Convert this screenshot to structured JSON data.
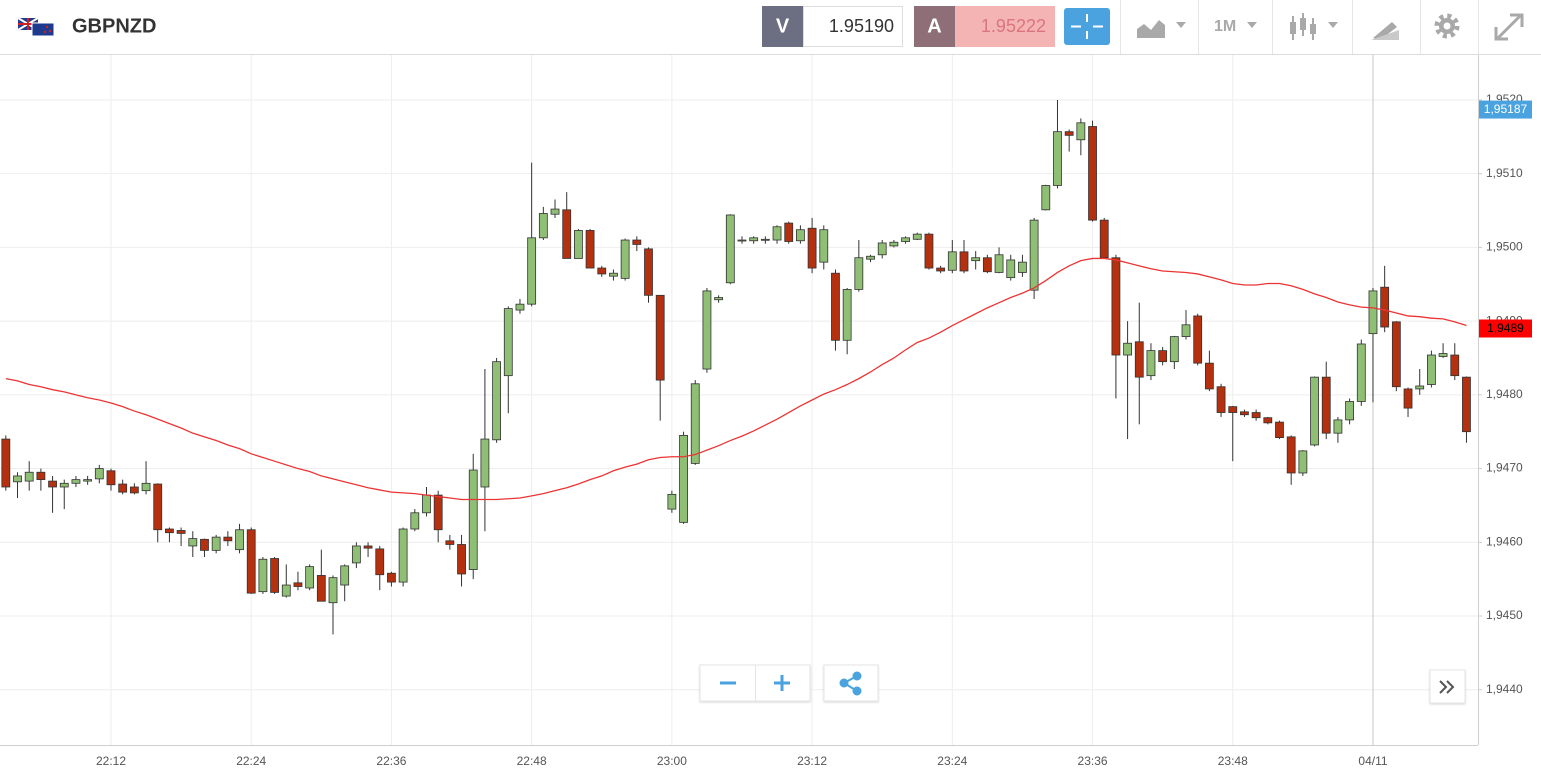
{
  "header": {
    "symbol": "GBPNZD",
    "sell_label": "V",
    "sell_price": "1.95190",
    "buy_label": "A",
    "buy_price": "1.95222",
    "timeframe": "1M"
  },
  "chart_data": {
    "type": "candlestick",
    "categories": [
      null,
      null,
      null,
      null,
      null,
      null,
      null,
      null,
      null,
      "22:12",
      null,
      null,
      null,
      null,
      null,
      null,
      null,
      null,
      null,
      null,
      null,
      "22:24",
      null,
      null,
      null,
      null,
      null,
      null,
      null,
      null,
      null,
      null,
      null,
      "22:36",
      null,
      null,
      null,
      null,
      null,
      null,
      null,
      null,
      null,
      null,
      null,
      "22:48",
      null,
      null,
      null,
      null,
      null,
      null,
      null,
      null,
      null,
      null,
      null,
      "23:00",
      null,
      null,
      null,
      null,
      null,
      null,
      null,
      null,
      null,
      null,
      null,
      "23:12",
      null,
      null,
      null,
      null,
      null,
      null,
      null,
      null,
      null,
      null,
      null,
      "23:24",
      null,
      null,
      null,
      null,
      null,
      null,
      null,
      null,
      null,
      null,
      null,
      "23:36",
      null,
      null,
      null,
      null,
      null,
      null,
      null,
      null,
      null,
      null,
      null,
      "23:48",
      null,
      null,
      null,
      null,
      null,
      null,
      null,
      null,
      null,
      null,
      null,
      "04/11",
      null,
      null,
      null,
      null,
      null,
      null,
      null,
      null
    ],
    "open": [
      1.9474,
      1.94682,
      1.94683,
      1.94695,
      1.94683,
      1.94675,
      1.9468,
      1.94683,
      1.94686,
      1.94697,
      1.94679,
      1.94675,
      1.9467,
      1.94679,
      1.94618,
      1.94616,
      1.94595,
      1.94604,
      1.94589,
      1.94607,
      1.9459,
      1.94617,
      1.94533,
      1.94578,
      1.94527,
      1.94545,
      1.94538,
      1.94555,
      1.94518,
      1.94542,
      1.94572,
      1.94595,
      1.94591,
      1.94558,
      1.94546,
      1.94618,
      1.9464,
      1.94664,
      1.94602,
      1.94597,
      1.94563,
      1.94675,
      1.94739,
      1.94826,
      1.94915,
      1.94923,
      1.95013,
      1.95045,
      1.95051,
      1.94985,
      1.95023,
      1.94972,
      1.94961,
      1.94958,
      1.9501,
      1.94998,
      1.94935,
      1.94645,
      1.94627,
      1.94707,
      1.94835,
      1.94929,
      1.94952,
      1.9501,
      1.95009,
      1.9501,
      1.9501,
      1.95033,
      1.95009,
      1.95026,
      1.9498,
      1.94965,
      1.94874,
      1.94943,
      1.94984,
      1.9499,
      1.95002,
      1.95008,
      1.95011,
      1.95018,
      1.94972,
      1.94969,
      1.94994,
      1.94982,
      1.94986,
      1.94966,
      1.94959,
      1.94966,
      1.94942,
      1.95051,
      1.95084,
      1.95157,
      1.95146,
      1.95164,
      1.95037,
      1.94986,
      1.94854,
      1.94872,
      1.94826,
      1.9486,
      1.94845,
      1.94879,
      1.94907,
      1.94843,
      1.94811,
      1.94784,
      1.94777,
      1.94776,
      1.94769,
      1.94763,
      1.94743,
      1.94694,
      1.94732,
      1.94824,
      1.94748,
      1.94766,
      1.94791,
      1.94883,
      1.94946,
      1.94899,
      1.94808,
      1.94808,
      1.94814,
      1.94852,
      1.94854,
      1.94824
    ],
    "high": [
      1.94745,
      1.94695,
      1.9471,
      1.947,
      1.9469,
      1.94685,
      1.9469,
      1.9469,
      1.94705,
      1.947,
      1.94685,
      1.9468,
      1.9471,
      1.9468,
      1.9462,
      1.9462,
      1.94615,
      1.94605,
      1.9461,
      1.94615,
      1.94625,
      1.9462,
      1.9458,
      1.9458,
      1.9457,
      1.9456,
      1.9457,
      1.9459,
      1.94555,
      1.9457,
      1.946,
      1.946,
      1.94595,
      1.9456,
      1.9462,
      1.94645,
      1.94675,
      1.9467,
      1.9461,
      1.9461,
      1.9472,
      1.94835,
      1.9485,
      1.9492,
      1.9493,
      1.95115,
      1.95055,
      1.95065,
      1.95075,
      1.95025,
      1.95025,
      1.94975,
      1.9497,
      1.95012,
      1.95015,
      1.95,
      1.94935,
      1.9467,
      1.9475,
      1.9482,
      1.94945,
      1.94935,
      1.95045,
      1.95015,
      1.95015,
      1.95015,
      1.9503,
      1.95035,
      1.9503,
      1.9504,
      1.9503,
      1.9497,
      1.94945,
      1.9501,
      1.9499,
      1.9501,
      1.9501,
      1.95015,
      1.9502,
      1.9502,
      1.94975,
      1.9501,
      1.9501,
      1.94995,
      1.9499,
      1.95,
      1.9499,
      1.9499,
      1.9504,
      1.95085,
      1.952,
      1.9516,
      1.95175,
      1.95172,
      1.9504,
      1.9499,
      1.949,
      1.94925,
      1.9487,
      1.94865,
      1.9488,
      1.94915,
      1.9491,
      1.9486,
      1.94815,
      1.94785,
      1.9478,
      1.9478,
      1.9477,
      1.94765,
      1.94745,
      1.94725,
      1.94825,
      1.94845,
      1.9477,
      1.94795,
      1.94875,
      1.94945,
      1.94975,
      1.949,
      1.9481,
      1.94835,
      1.9486,
      1.9487,
      1.9487,
      1.94825
    ],
    "low": [
      1.9467,
      1.9466,
      1.9467,
      1.9467,
      1.9464,
      1.94645,
      1.94675,
      1.94678,
      1.9468,
      1.9467,
      1.94665,
      1.94665,
      1.94665,
      1.946,
      1.946,
      1.94595,
      1.9458,
      1.9458,
      1.94585,
      1.94595,
      1.94585,
      1.9453,
      1.9453,
      1.9453,
      1.94525,
      1.94535,
      1.94535,
      1.9452,
      1.94475,
      1.9452,
      1.94565,
      1.9458,
      1.94535,
      1.9454,
      1.9454,
      1.94615,
      1.94635,
      1.946,
      1.9459,
      1.9454,
      1.9455,
      1.94615,
      1.94735,
      1.94775,
      1.9491,
      1.9492,
      1.9501,
      1.9504,
      1.94985,
      1.94985,
      1.94972,
      1.9496,
      1.94955,
      1.94955,
      1.94995,
      1.94925,
      1.94765,
      1.9464,
      1.94625,
      1.94705,
      1.9483,
      1.94925,
      1.9495,
      1.95005,
      1.95005,
      1.95005,
      1.95005,
      1.95005,
      1.95005,
      1.94965,
      1.9497,
      1.9486,
      1.94855,
      1.9494,
      1.9498,
      1.94985,
      1.95,
      1.95005,
      1.9501,
      1.9497,
      1.94965,
      1.94965,
      1.94965,
      1.9497,
      1.94965,
      1.94965,
      1.94955,
      1.9496,
      1.9493,
      1.9505,
      1.9508,
      1.9513,
      1.95125,
      1.95035,
      1.94985,
      1.94795,
      1.9474,
      1.9476,
      1.9482,
      1.9484,
      1.94835,
      1.94875,
      1.9484,
      1.94805,
      1.9477,
      1.9471,
      1.9477,
      1.94765,
      1.9476,
      1.9474,
      1.94678,
      1.9469,
      1.9473,
      1.9474,
      1.94735,
      1.9476,
      1.94785,
      1.9479,
      1.94885,
      1.94805,
      1.9477,
      1.948,
      1.9481,
      1.9485,
      1.9482,
      1.94735
    ],
    "close": [
      1.94675,
      1.9469,
      1.94695,
      1.94685,
      1.94675,
      1.9468,
      1.94685,
      1.94685,
      1.947,
      1.94678,
      1.94668,
      1.94667,
      1.9468,
      1.94617,
      1.94613,
      1.94612,
      1.94605,
      1.94589,
      1.94607,
      1.94602,
      1.94617,
      1.94531,
      1.94577,
      1.94532,
      1.94542,
      1.9454,
      1.94567,
      1.9452,
      1.94552,
      1.94568,
      1.94595,
      1.94592,
      1.94556,
      1.94546,
      1.94618,
      1.9464,
      1.94664,
      1.94617,
      1.94597,
      1.94557,
      1.94698,
      1.9474,
      1.94845,
      1.94917,
      1.94923,
      1.95013,
      1.95046,
      1.95052,
      1.94985,
      1.95023,
      1.94972,
      1.94964,
      1.94965,
      1.9501,
      1.95004,
      1.94935,
      1.9482,
      1.94665,
      1.94745,
      1.94815,
      1.94941,
      1.94932,
      1.95044,
      1.9501,
      1.95013,
      1.95011,
      1.95028,
      1.95008,
      1.95024,
      1.94972,
      1.95024,
      1.94874,
      1.94943,
      1.94986,
      1.94988,
      1.95006,
      1.95007,
      1.95013,
      1.95018,
      1.94972,
      1.94968,
      1.94994,
      1.94968,
      1.94986,
      1.94967,
      1.9499,
      1.94983,
      1.9498,
      1.95037,
      1.95084,
      1.95157,
      1.95152,
      1.95169,
      1.95037,
      1.94986,
      1.94854,
      1.9487,
      1.94824,
      1.9486,
      1.94845,
      1.94879,
      1.94895,
      1.94843,
      1.94808,
      1.94776,
      1.94776,
      1.94773,
      1.94769,
      1.94762,
      1.94742,
      1.94694,
      1.94724,
      1.94824,
      1.94748,
      1.94766,
      1.94791,
      1.94869,
      1.94941,
      1.94892,
      1.94811,
      1.94782,
      1.94812,
      1.94854,
      1.94856,
      1.94826,
      1.9475
    ],
    "up_color": "#8fbf74",
    "down_color": "#b5300f",
    "lines": [
      {
        "color": "#ec3434",
        "values": [
          1.94822,
          1.94819,
          1.94814,
          1.94811,
          1.94807,
          1.94804,
          1.948,
          1.94796,
          1.94793,
          1.94789,
          1.94784,
          1.94778,
          1.94773,
          1.94767,
          1.94761,
          1.94755,
          1.94748,
          1.94743,
          1.94738,
          1.94732,
          1.94727,
          1.9472,
          1.94715,
          1.9471,
          1.94705,
          1.947,
          1.94696,
          1.9469,
          1.94686,
          1.94682,
          1.94678,
          1.94674,
          1.94671,
          1.94668,
          1.94667,
          1.94666,
          1.94664,
          1.94662,
          1.9466,
          1.94658,
          1.94658,
          1.94658,
          1.94658,
          1.94659,
          1.9466,
          1.94663,
          1.94666,
          1.9467,
          1.94674,
          1.94679,
          1.94685,
          1.9469,
          1.94697,
          1.94702,
          1.94706,
          1.94712,
          1.94715,
          1.94716,
          1.94716,
          1.94719,
          1.94725,
          1.94731,
          1.94738,
          1.94744,
          1.94751,
          1.94759,
          1.94767,
          1.94776,
          1.94785,
          1.94793,
          1.94801,
          1.94807,
          1.94814,
          1.94822,
          1.94831,
          1.94841,
          1.9485,
          1.94861,
          1.94871,
          1.94877,
          1.94885,
          1.94894,
          1.94902,
          1.9491,
          1.94918,
          1.94925,
          1.94932,
          1.94938,
          1.94945,
          1.94955,
          1.94966,
          1.94975,
          1.94982,
          1.94985,
          1.94985,
          1.94983,
          1.94979,
          1.94975,
          1.94971,
          1.94968,
          1.94967,
          1.94966,
          1.94964,
          1.9496,
          1.94956,
          1.94951,
          1.94949,
          1.94949,
          1.94951,
          1.94951,
          1.94948,
          1.94943,
          1.94937,
          1.94932,
          1.94926,
          1.94922,
          1.94919,
          1.94918,
          1.94915,
          1.94911,
          1.94907,
          1.94906,
          1.94904,
          1.94903,
          1.94899,
          1.94894
        ]
      }
    ],
    "price_markers": [
      {
        "value": 1.95187,
        "label": "1,95187",
        "color": "#4aa3df"
      },
      {
        "value": 1.9489,
        "label": "1,9489",
        "color": "#ff0000"
      }
    ],
    "ylim": [
      1.94325,
      1.95261
    ],
    "yticks": [
      {
        "value": 1.944,
        "label": "1,9440"
      },
      {
        "value": 1.945,
        "label": "1,9450"
      },
      {
        "value": 1.946,
        "label": "1,9460"
      },
      {
        "value": 1.947,
        "label": "1,9470"
      },
      {
        "value": 1.948,
        "label": "1,9480"
      },
      {
        "value": 1.949,
        "label": "1,9490"
      },
      {
        "value": 1.95,
        "label": "1,9500"
      },
      {
        "value": 1.951,
        "label": "1,9510"
      },
      {
        "value": 1.952,
        "label": "1,9520"
      }
    ],
    "grid": true
  }
}
